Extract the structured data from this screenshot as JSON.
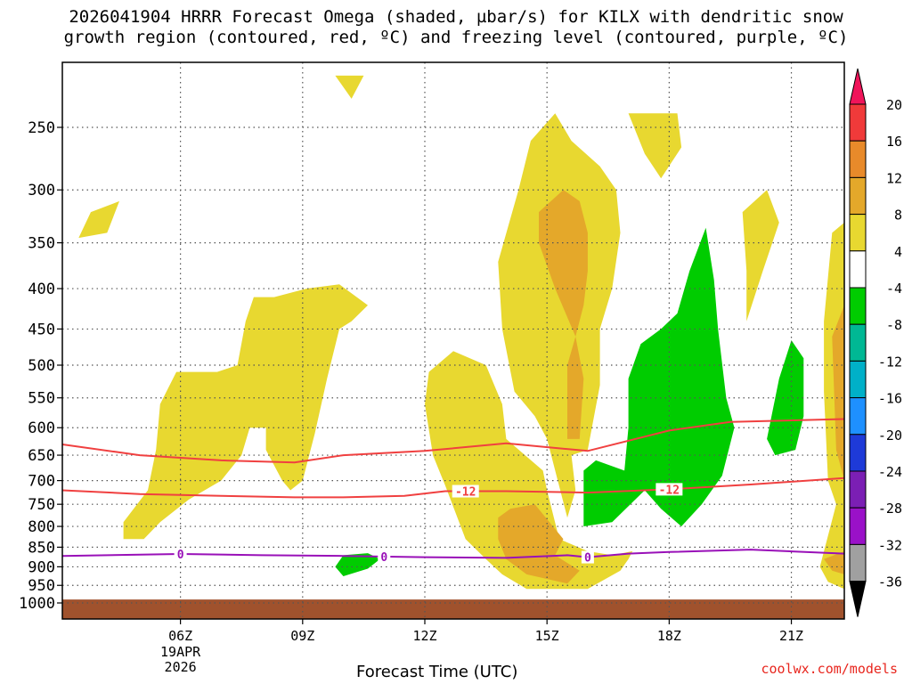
{
  "chart_data": {
    "type": "contour",
    "title_line1": "2026041904 HRRR Forecast Omega (shaded, µbar/s) for KILX with dendritic snow",
    "title_line2": "growth region (contoured, red, ºC) and freezing level (contoured, purple, ºC)",
    "xlabel": "Forecast Time (UTC)",
    "ylabel": "",
    "x_range_hours": [
      3.1,
      22.3
    ],
    "x_ticks": [
      {
        "hour": 6,
        "label": "06Z"
      },
      {
        "hour": 9,
        "label": "09Z"
      },
      {
        "hour": 12,
        "label": "12Z"
      },
      {
        "hour": 15,
        "label": "15Z"
      },
      {
        "hour": 18,
        "label": "18Z"
      },
      {
        "hour": 21,
        "label": "21Z"
      }
    ],
    "date_label": {
      "hour": 6,
      "day": "19APR",
      "year": "2026"
    },
    "y_ticks": [
      250,
      300,
      350,
      400,
      450,
      500,
      550,
      600,
      650,
      700,
      750,
      800,
      850,
      900,
      950,
      1000
    ],
    "y_range_mb": [
      210,
      1000
    ],
    "ground_pressure_mb": 990,
    "colorbar": {
      "labels": [
        "20",
        "16",
        "12",
        "8",
        "4",
        "-4",
        "-8",
        "-12",
        "-16",
        "-20",
        "-24",
        "-28",
        "-32",
        "-36"
      ],
      "colors": [
        "#f0145a",
        "#f03a3a",
        "#e88a2a",
        "#e4a82a",
        "#e8d830",
        "#ffffff",
        "#00cc00",
        "#00b894",
        "#00b0c8",
        "#1e90ff",
        "#1e3ad8",
        "#7b1fb4",
        "#9a11c8",
        "#a0a0a0",
        "#000000"
      ]
    },
    "shading": [
      {
        "level": "4 to 8",
        "color": "#e8d830",
        "polys": [
          [
            [
              3.8,
              320
            ],
            [
              3.5,
              345
            ],
            [
              4.2,
              340
            ],
            [
              4.5,
              310
            ]
          ],
          [
            [
              4.6,
              830
            ],
            [
              4.6,
              790
            ],
            [
              5.2,
              720
            ],
            [
              5.4,
              640
            ],
            [
              5.5,
              560
            ],
            [
              5.9,
              510
            ],
            [
              6.9,
              510
            ],
            [
              7.4,
              500
            ],
            [
              7.6,
              440
            ],
            [
              7.8,
              410
            ],
            [
              8.3,
              410
            ],
            [
              9.1,
              400
            ],
            [
              9.9,
              395
            ],
            [
              10.6,
              420
            ],
            [
              10.2,
              440
            ],
            [
              9.9,
              450
            ],
            [
              9.6,
              520
            ],
            [
              9.3,
              610
            ],
            [
              9.0,
              700
            ],
            [
              8.7,
              720
            ],
            [
              8.5,
              700
            ],
            [
              8.1,
              640
            ],
            [
              8.1,
              600
            ],
            [
              7.7,
              600
            ],
            [
              7.5,
              650
            ],
            [
              7.0,
              700
            ],
            [
              6.2,
              740
            ],
            [
              5.5,
              790
            ],
            [
              5.1,
              830
            ]
          ],
          [
            [
              12.1,
              510
            ],
            [
              12.7,
              480
            ],
            [
              13.5,
              500
            ],
            [
              13.9,
              560
            ],
            [
              14.0,
              620
            ],
            [
              14.9,
              680
            ],
            [
              15.0,
              720
            ],
            [
              15.3,
              830
            ],
            [
              16.0,
              860
            ],
            [
              16.6,
              870
            ],
            [
              17.1,
              860
            ],
            [
              17.0,
              880
            ],
            [
              16.8,
              910
            ],
            [
              16.0,
              960
            ],
            [
              14.5,
              960
            ],
            [
              13.9,
              920
            ],
            [
              13.5,
              880
            ],
            [
              13.0,
              830
            ],
            [
              12.8,
              780
            ],
            [
              12.5,
              710
            ],
            [
              12.2,
              650
            ],
            [
              12.0,
              560
            ]
          ],
          [
            [
              14.7,
              580
            ],
            [
              14.2,
              540
            ],
            [
              13.9,
              450
            ],
            [
              13.8,
              370
            ],
            [
              14.3,
              300
            ],
            [
              14.6,
              260
            ],
            [
              15.2,
              240
            ],
            [
              15.6,
              260
            ],
            [
              16.3,
              280
            ],
            [
              16.7,
              300
            ],
            [
              16.8,
              340
            ],
            [
              16.6,
              400
            ],
            [
              16.3,
              450
            ],
            [
              16.3,
              530
            ],
            [
              16.0,
              640
            ],
            [
              15.6,
              650
            ],
            [
              15.7,
              720
            ],
            [
              15.5,
              780
            ],
            [
              15.0,
              620
            ]
          ],
          [
            [
              17.0,
              240
            ],
            [
              18.2,
              240
            ],
            [
              18.3,
              265
            ],
            [
              17.8,
              290
            ],
            [
              17.4,
              270
            ]
          ],
          [
            [
              9.8,
              215
            ],
            [
              10.5,
              215
            ],
            [
              10.2,
              230
            ]
          ],
          [
            [
              19.8,
              320
            ],
            [
              20.4,
              300
            ],
            [
              20.7,
              330
            ],
            [
              20.3,
              380
            ],
            [
              19.9,
              440
            ],
            [
              19.9,
              380
            ]
          ],
          [
            [
              21.7,
              900
            ],
            [
              22.1,
              750
            ],
            [
              21.9,
              700
            ],
            [
              21.8,
              540
            ],
            [
              21.8,
              440
            ],
            [
              22.0,
              340
            ],
            [
              22.3,
              330
            ],
            [
              22.3,
              960
            ],
            [
              21.9,
              940
            ]
          ]
        ]
      },
      {
        "level": "8 to 12",
        "color": "#e4a82a",
        "polys": [
          [
            [
              14.8,
              320
            ],
            [
              15.4,
              300
            ],
            [
              15.8,
              310
            ],
            [
              16.0,
              340
            ],
            [
              16.0,
              380
            ],
            [
              15.9,
              420
            ],
            [
              15.7,
              460
            ],
            [
              15.2,
              400
            ],
            [
              14.8,
              350
            ]
          ],
          [
            [
              15.7,
              460
            ],
            [
              15.9,
              520
            ],
            [
              15.8,
              620
            ],
            [
              15.5,
              620
            ],
            [
              15.5,
              500
            ]
          ],
          [
            [
              13.8,
              780
            ],
            [
              14.1,
              760
            ],
            [
              14.7,
              750
            ],
            [
              15.4,
              830
            ],
            [
              15.2,
              870
            ],
            [
              15.5,
              890
            ],
            [
              15.8,
              910
            ],
            [
              15.5,
              945
            ],
            [
              14.5,
              920
            ],
            [
              14.0,
              880
            ],
            [
              13.8,
              830
            ]
          ],
          [
            [
              21.8,
              880
            ],
            [
              22.3,
              860
            ],
            [
              22.3,
              920
            ],
            [
              22.0,
              910
            ]
          ],
          [
            [
              22.0,
              460
            ],
            [
              22.3,
              420
            ],
            [
              22.3,
              700
            ],
            [
              22.1,
              640
            ]
          ]
        ]
      },
      {
        "level": "-4 to -8",
        "color": "#00cc00",
        "polys": [
          [
            [
              16.9,
              680
            ],
            [
              17.0,
              600
            ],
            [
              17.0,
              520
            ],
            [
              17.3,
              470
            ],
            [
              17.8,
              450
            ],
            [
              18.2,
              430
            ],
            [
              18.5,
              380
            ],
            [
              18.9,
              335
            ],
            [
              19.1,
              390
            ],
            [
              19.2,
              450
            ],
            [
              19.4,
              550
            ],
            [
              19.6,
              600
            ],
            [
              19.3,
              690
            ],
            [
              18.8,
              750
            ],
            [
              18.3,
              800
            ],
            [
              17.8,
              760
            ],
            [
              17.4,
              720
            ],
            [
              16.6,
              790
            ],
            [
              15.9,
              800
            ],
            [
              15.9,
              680
            ],
            [
              16.2,
              660
            ]
          ],
          [
            [
              10.0,
              870
            ],
            [
              10.6,
              865
            ],
            [
              10.9,
              880
            ],
            [
              10.6,
              905
            ],
            [
              10.0,
              925
            ],
            [
              9.8,
              900
            ]
          ],
          [
            [
              20.4,
              620
            ],
            [
              20.7,
              520
            ],
            [
              21.0,
              465
            ],
            [
              21.3,
              490
            ],
            [
              21.3,
              580
            ],
            [
              21.1,
              640
            ],
            [
              20.6,
              650
            ]
          ]
        ]
      }
    ],
    "series": [
      {
        "name": "-12 C upper",
        "color": "#f04040",
        "label": "",
        "points": [
          [
            3.1,
            630
          ],
          [
            5.0,
            650
          ],
          [
            7.0,
            660
          ],
          [
            8.8,
            664
          ],
          [
            10.0,
            650
          ],
          [
            12.0,
            642
          ],
          [
            14.0,
            628
          ],
          [
            16.0,
            642
          ],
          [
            18.0,
            605
          ],
          [
            19.5,
            590
          ],
          [
            22.3,
            585
          ]
        ]
      },
      {
        "name": "-12 C lower",
        "color": "#f04040",
        "label": "-12",
        "points": [
          [
            3.1,
            720
          ],
          [
            5.0,
            728
          ],
          [
            7.0,
            732
          ],
          [
            8.8,
            735
          ],
          [
            10.0,
            735
          ],
          [
            11.5,
            732
          ],
          [
            12.5,
            722
          ],
          [
            14.0,
            722
          ],
          [
            16.0,
            725
          ],
          [
            18.0,
            718
          ],
          [
            20.0,
            708
          ],
          [
            22.3,
            695
          ]
        ]
      },
      {
        "name": "0 C freezing level",
        "color": "#9910b8",
        "label": "0",
        "points": [
          [
            3.1,
            872
          ],
          [
            6.0,
            867
          ],
          [
            8.0,
            870
          ],
          [
            10.0,
            872
          ],
          [
            12.0,
            875
          ],
          [
            14.0,
            877
          ],
          [
            15.5,
            870
          ],
          [
            16.0,
            875
          ],
          [
            17.0,
            866
          ],
          [
            18.0,
            862
          ],
          [
            20.0,
            856
          ],
          [
            22.3,
            866
          ]
        ]
      }
    ],
    "contour_labels": [
      {
        "series": 1,
        "hour": 13.0,
        "text": "-12"
      },
      {
        "series": 1,
        "hour": 18.0,
        "text": "-12"
      },
      {
        "series": 2,
        "hour": 6.0,
        "text": "0"
      },
      {
        "series": 2,
        "hour": 11.0,
        "text": "0"
      },
      {
        "series": 2,
        "hour": 16.0,
        "text": "0"
      }
    ]
  },
  "credit": "coolwx.com/models"
}
